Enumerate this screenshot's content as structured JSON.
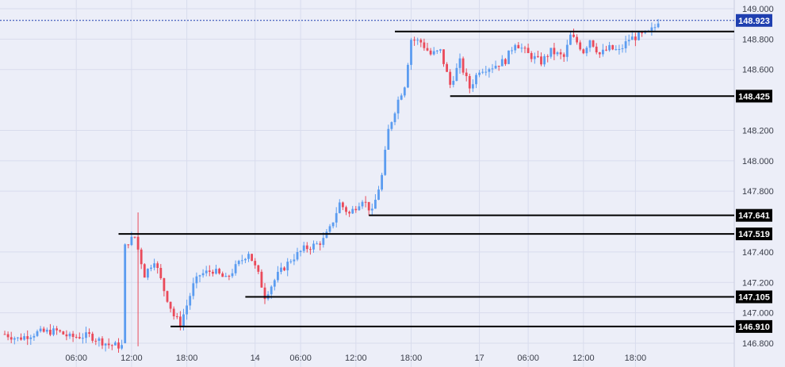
{
  "chart_data": {
    "type": "candlestick",
    "ylim": [
      146.74,
      149.03
    ],
    "y_ticks": [
      "149.000",
      "148.800",
      "148.600",
      "148.200",
      "148.000",
      "147.800",
      "147.400",
      "147.200",
      "147.000",
      "146.800"
    ],
    "y_tick_values": [
      149.0,
      148.8,
      148.6,
      148.2,
      148.0,
      147.8,
      147.4,
      147.2,
      147.0,
      146.8
    ],
    "x_ticks": [
      "06:00",
      "12:00",
      "18:00",
      "14",
      "06:00",
      "12:00",
      "18:00",
      "17",
      "06:00",
      "12:00",
      "18:00"
    ],
    "x_tick_index": [
      22,
      39,
      56,
      77,
      91,
      108,
      125,
      146,
      161,
      178,
      194
    ],
    "current_price": 148.923,
    "current_price_label": "148.923",
    "levels": [
      {
        "value": 148.85,
        "label": "",
        "start_index": 120
      },
      {
        "value": 148.425,
        "label": "148.425",
        "start_index": 137
      },
      {
        "value": 147.641,
        "label": "147.641",
        "start_index": 112
      },
      {
        "value": 147.519,
        "label": "147.519",
        "start_index": 35
      },
      {
        "value": 147.105,
        "label": "147.105",
        "start_index": 74
      },
      {
        "value": 146.91,
        "label": "146.910",
        "start_index": 51
      }
    ],
    "colors": {
      "up": "#5b9cf0",
      "down": "#ea4a5a"
    },
    "anchors": [
      [
        0,
        146.86
      ],
      [
        4,
        146.83
      ],
      [
        10,
        146.87
      ],
      [
        16,
        146.88
      ],
      [
        20,
        146.84
      ],
      [
        26,
        146.85
      ],
      [
        32,
        146.79
      ],
      [
        36,
        146.78
      ],
      [
        37,
        147.45
      ],
      [
        40,
        147.5
      ],
      [
        43,
        147.25
      ],
      [
        46,
        147.35
      ],
      [
        49,
        147.15
      ],
      [
        52,
        146.98
      ],
      [
        54,
        146.93
      ],
      [
        56,
        147.05
      ],
      [
        58,
        147.18
      ],
      [
        60,
        147.25
      ],
      [
        64,
        147.28
      ],
      [
        68,
        147.22
      ],
      [
        71,
        147.3
      ],
      [
        75,
        147.4
      ],
      [
        78,
        147.25
      ],
      [
        80,
        147.11
      ],
      [
        84,
        147.25
      ],
      [
        88,
        147.35
      ],
      [
        92,
        147.42
      ],
      [
        96,
        147.45
      ],
      [
        98,
        147.48
      ],
      [
        100,
        147.55
      ],
      [
        103,
        147.72
      ],
      [
        106,
        147.65
      ],
      [
        110,
        147.75
      ],
      [
        113,
        147.66
      ],
      [
        116,
        147.9
      ],
      [
        118,
        148.2
      ],
      [
        121,
        148.4
      ],
      [
        123,
        148.5
      ],
      [
        125,
        148.8
      ],
      [
        128,
        148.78
      ],
      [
        131,
        148.7
      ],
      [
        134,
        148.72
      ],
      [
        137,
        148.5
      ],
      [
        140,
        148.65
      ],
      [
        143,
        148.48
      ],
      [
        146,
        148.6
      ],
      [
        150,
        148.62
      ],
      [
        154,
        148.66
      ],
      [
        157,
        148.78
      ],
      [
        161,
        148.7
      ],
      [
        165,
        148.65
      ],
      [
        168,
        148.72
      ],
      [
        172,
        148.68
      ],
      [
        174,
        148.82
      ],
      [
        176,
        148.78
      ],
      [
        178,
        148.72
      ],
      [
        180,
        148.8
      ],
      [
        183,
        148.7
      ],
      [
        186,
        148.74
      ],
      [
        189,
        148.72
      ],
      [
        192,
        148.8
      ],
      [
        195,
        148.82
      ],
      [
        198,
        148.84
      ],
      [
        200,
        148.88
      ],
      [
        201,
        148.923
      ]
    ]
  }
}
